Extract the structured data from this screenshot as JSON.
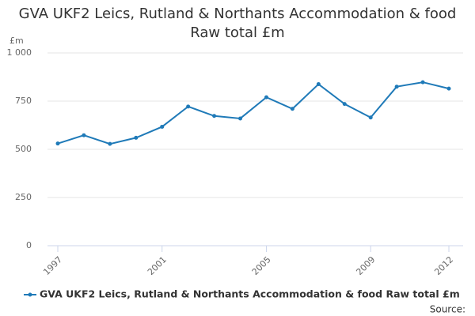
{
  "chart_data": {
    "type": "line",
    "title": "GVA UKF2 Leics, Rutland & Northants Accommodation & food Raw total £m",
    "y_label": "£m",
    "source": "Source:",
    "x": [
      1997,
      1998,
      1999,
      2000,
      2001,
      2002,
      2003,
      2004,
      2005,
      2006,
      2007,
      2008,
      2009,
      2010,
      2011,
      2012
    ],
    "series": [
      {
        "name": "GVA UKF2 Leics, Rutland & Northants Accommodation & food Raw total £m",
        "color": "#1f7ab8",
        "values": [
          530,
          573,
          528,
          560,
          617,
          722,
          673,
          660,
          770,
          710,
          838,
          735,
          665,
          825,
          848,
          815
        ]
      }
    ],
    "xlim": [
      1997,
      2012
    ],
    "xticks": [
      1997,
      2001,
      2005,
      2009,
      2012
    ],
    "ylim": [
      0,
      1000
    ],
    "yticks": [
      0,
      250,
      500,
      750,
      {
        "value": 1000,
        "label": "1 000"
      }
    ],
    "grid": true
  }
}
